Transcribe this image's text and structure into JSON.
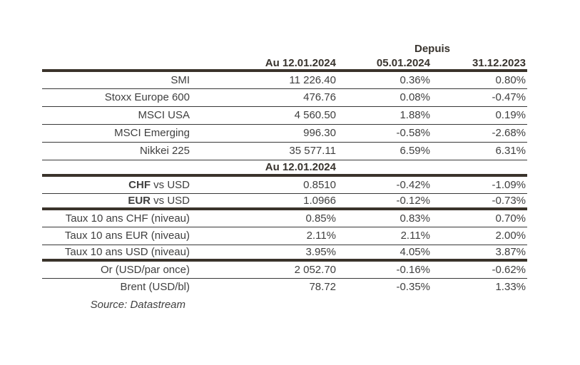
{
  "table": {
    "depuis_label": "Depuis",
    "columns": [
      "Au 12.01.2024",
      "05.01.2024",
      "31.12.2023"
    ],
    "mid_header": "Au 12.01.2024",
    "rows": [
      {
        "label_bold": "",
        "label": "SMI",
        "values": [
          "11 226.40",
          "0.36%",
          "0.80%"
        ]
      },
      {
        "label_bold": "",
        "label": "Stoxx Europe 600",
        "values": [
          "476.76",
          "0.08%",
          "-0.47%"
        ]
      },
      {
        "label_bold": "",
        "label": "MSCI USA",
        "values": [
          "4 560.50",
          "1.88%",
          "0.19%"
        ]
      },
      {
        "label_bold": "",
        "label": "MSCI Emerging",
        "values": [
          "996.30",
          "-0.58%",
          "-2.68%"
        ]
      },
      {
        "label_bold": "",
        "label": "Nikkei 225",
        "values": [
          "35 577.11",
          "6.59%",
          "6.31%"
        ]
      },
      {
        "label_bold": "CHF",
        "label": " vs USD",
        "values": [
          "0.8510",
          "-0.42%",
          "-1.09%"
        ]
      },
      {
        "label_bold": "EUR",
        "label": " vs USD",
        "values": [
          "1.0966",
          "-0.12%",
          "-0.73%"
        ]
      },
      {
        "label_bold": "",
        "label": "Taux 10 ans CHF (niveau)",
        "values": [
          "0.85%",
          "0.83%",
          "0.70%"
        ]
      },
      {
        "label_bold": "",
        "label": "Taux 10 ans EUR (niveau)",
        "values": [
          "2.11%",
          "2.11%",
          "2.00%"
        ]
      },
      {
        "label_bold": "",
        "label": "Taux 10 ans USD (niveau)",
        "values": [
          "3.95%",
          "4.05%",
          "3.87%"
        ]
      },
      {
        "label_bold": "",
        "label": "Or (USD/par once)",
        "values": [
          "2 052.70",
          "-0.16%",
          "-0.62%"
        ]
      },
      {
        "label_bold": "",
        "label": "Brent (USD/bl)",
        "values": [
          "78.72",
          "-0.35%",
          "1.33%"
        ]
      }
    ],
    "source_note": "Source: Datastream"
  }
}
